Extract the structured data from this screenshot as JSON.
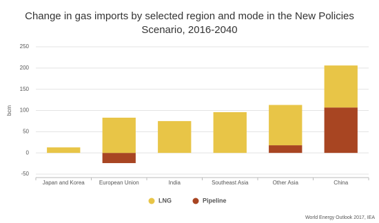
{
  "chart_data": {
    "type": "stacked_bar",
    "title": "Change in gas imports by selected region and mode in the New Policies Scenario, 2016-2040",
    "y_label": "bcm",
    "categories": [
      "Japan and Korea",
      "European Union",
      "India",
      "Southeast Asia",
      "Other Asia",
      "China"
    ],
    "series": [
      {
        "name": "Pipeline",
        "color": "#a84522",
        "values": [
          0,
          -24,
          0,
          0,
          18,
          107
        ]
      },
      {
        "name": "LNG",
        "color": "#e8c547",
        "values": [
          13,
          83,
          75,
          96,
          95,
          99
        ]
      }
    ],
    "legend_order": [
      1,
      0
    ],
    "ylim": [
      -50,
      250
    ],
    "yticks": [
      -50,
      0,
      50,
      100,
      150,
      200,
      250
    ],
    "grid": true,
    "legend": "bottom",
    "source": "World Energy Outlook 2017, IEA"
  }
}
